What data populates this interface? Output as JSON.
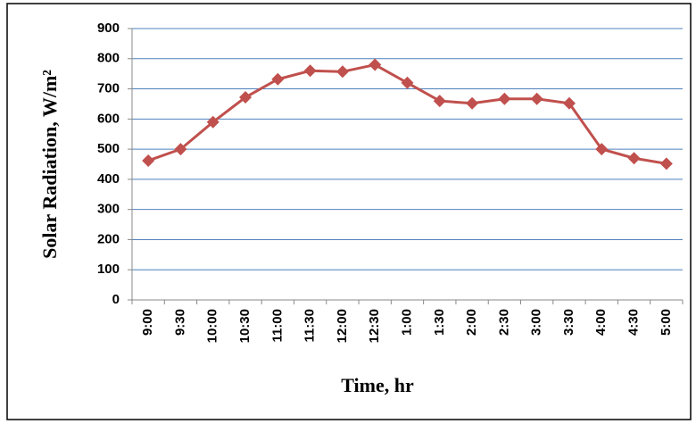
{
  "chart_data": {
    "type": "line",
    "x_label": "Time, hr",
    "y_label": "Solar Radiation, W/m²",
    "categories": [
      "9:00",
      "9:30",
      "10:00",
      "10:30",
      "11:00",
      "11:30",
      "12:00",
      "12:30",
      "1:00",
      "1:30",
      "2:00",
      "2:30",
      "3:00",
      "3:30",
      "4:00",
      "4:30",
      "5:00"
    ],
    "series": [
      {
        "color": "#c0504d",
        "values": [
          462,
          500,
          590,
          672,
          732,
          760,
          757,
          780,
          720,
          660,
          652,
          667,
          667,
          652,
          500,
          470,
          452
        ]
      }
    ],
    "ylim": [
      0,
      900
    ],
    "yticks": [
      0,
      100,
      200,
      300,
      400,
      500,
      600,
      700,
      800,
      900
    ],
    "grid": true
  }
}
